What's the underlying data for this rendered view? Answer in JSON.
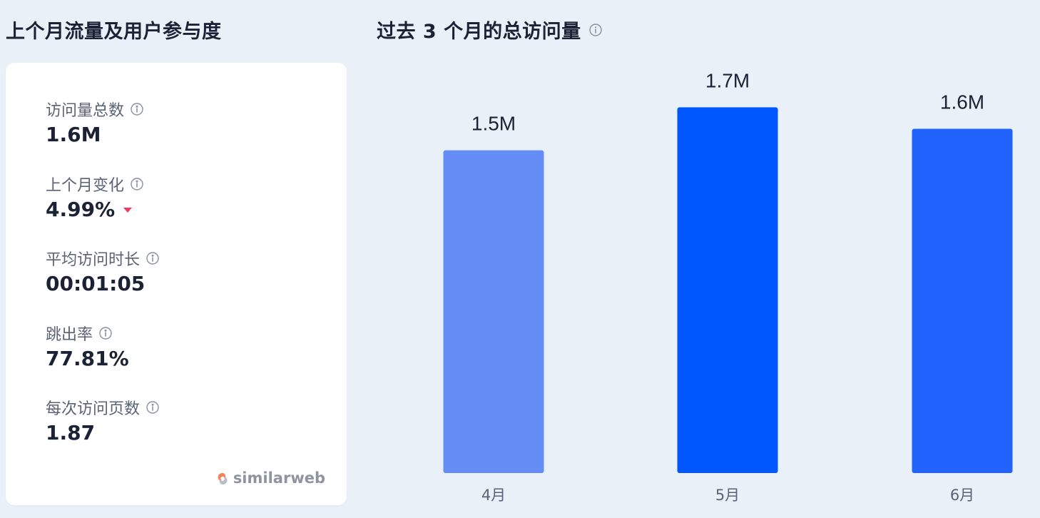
{
  "left_section": {
    "title": "上个月流量及用户参与度"
  },
  "right_section": {
    "title": "过去 3 个月的总访问量"
  },
  "metrics": [
    {
      "label": "访问量总数",
      "value": "1.6M",
      "trend": null
    },
    {
      "label": "上个月变化",
      "value": "4.99%",
      "trend": "down"
    },
    {
      "label": "平均访问时长",
      "value": "00:01:05",
      "trend": null
    },
    {
      "label": "跳出率",
      "value": "77.81%",
      "trend": null
    },
    {
      "label": "每次访问页数",
      "value": "1.87",
      "trend": null
    }
  ],
  "brand": {
    "name": "similarweb",
    "icon": "similarweb-logo-icon"
  },
  "colors": {
    "trend_down": "#ef3a5d",
    "bar_light": "#648ef5",
    "bar_strong": "#0157fe",
    "bar_mid": "#2163fc"
  },
  "chart_data": {
    "type": "bar",
    "title": "过去 3 个月的总访问量",
    "categories": [
      "4月",
      "5月",
      "6月"
    ],
    "values": [
      1.5,
      1.7,
      1.6
    ],
    "value_labels": [
      "1.5M",
      "1.7M",
      "1.6M"
    ],
    "bar_colors": [
      "#648ef5",
      "#0157fe",
      "#2163fc"
    ],
    "xlabel": "",
    "ylabel": "",
    "unit": "M",
    "ylim": [
      0,
      1.9
    ],
    "grid": false,
    "legend": "none"
  }
}
